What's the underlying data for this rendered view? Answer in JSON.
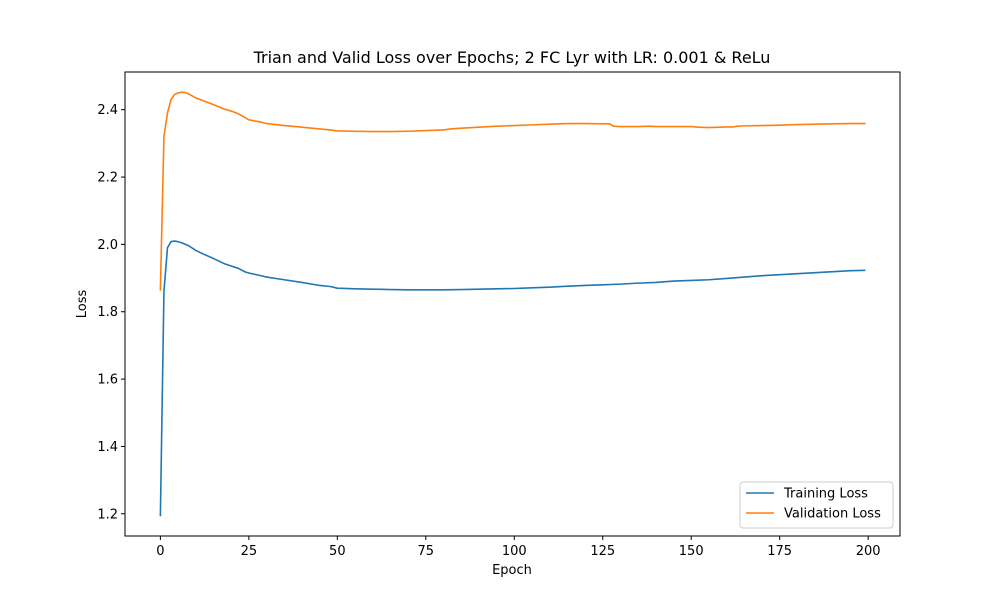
{
  "chart_data": {
    "type": "line",
    "title": "Trian and Valid Loss over Epochs; 2 FC Lyr with LR: 0.001 & ReLu",
    "xlabel": "Epoch",
    "ylabel": "Loss",
    "xlim": [
      -10,
      209
    ],
    "ylim": [
      1.134,
      2.512
    ],
    "xticks": [
      0,
      25,
      50,
      75,
      100,
      125,
      150,
      175,
      200
    ],
    "yticks": [
      1.2,
      1.4,
      1.6,
      1.8,
      2.0,
      2.2,
      2.4
    ],
    "grid": false,
    "legend_position": "lower-right",
    "series": [
      {
        "name": "Training Loss",
        "color": "#1f77b4",
        "points": [
          [
            0,
            1.195
          ],
          [
            1,
            1.86
          ],
          [
            2,
            1.99
          ],
          [
            3,
            2.008
          ],
          [
            4,
            2.01
          ],
          [
            5,
            2.008
          ],
          [
            6,
            2.005
          ],
          [
            8,
            1.996
          ],
          [
            10,
            1.982
          ],
          [
            12,
            1.972
          ],
          [
            15,
            1.958
          ],
          [
            18,
            1.943
          ],
          [
            20,
            1.936
          ],
          [
            22,
            1.929
          ],
          [
            24,
            1.918
          ],
          [
            25,
            1.915
          ],
          [
            28,
            1.908
          ],
          [
            30,
            1.903
          ],
          [
            35,
            1.895
          ],
          [
            40,
            1.887
          ],
          [
            45,
            1.878
          ],
          [
            48,
            1.875
          ],
          [
            50,
            1.87
          ],
          [
            55,
            1.868
          ],
          [
            60,
            1.867
          ],
          [
            65,
            1.866
          ],
          [
            70,
            1.865
          ],
          [
            75,
            1.865
          ],
          [
            80,
            1.865
          ],
          [
            85,
            1.866
          ],
          [
            90,
            1.867
          ],
          [
            95,
            1.868
          ],
          [
            100,
            1.869
          ],
          [
            105,
            1.871
          ],
          [
            110,
            1.873
          ],
          [
            115,
            1.876
          ],
          [
            120,
            1.878
          ],
          [
            125,
            1.88
          ],
          [
            130,
            1.882
          ],
          [
            135,
            1.885
          ],
          [
            140,
            1.887
          ],
          [
            145,
            1.891
          ],
          [
            150,
            1.893
          ],
          [
            155,
            1.895
          ],
          [
            160,
            1.899
          ],
          [
            165,
            1.903
          ],
          [
            170,
            1.907
          ],
          [
            175,
            1.91
          ],
          [
            180,
            1.913
          ],
          [
            185,
            1.916
          ],
          [
            190,
            1.919
          ],
          [
            195,
            1.922
          ],
          [
            199,
            1.923
          ]
        ]
      },
      {
        "name": "Validation Loss",
        "color": "#ff7f0e",
        "points": [
          [
            0,
            1.865
          ],
          [
            1,
            2.32
          ],
          [
            2,
            2.39
          ],
          [
            3,
            2.43
          ],
          [
            4,
            2.445
          ],
          [
            5,
            2.45
          ],
          [
            6,
            2.452
          ],
          [
            7,
            2.451
          ],
          [
            8,
            2.447
          ],
          [
            10,
            2.435
          ],
          [
            12,
            2.427
          ],
          [
            15,
            2.415
          ],
          [
            18,
            2.402
          ],
          [
            20,
            2.396
          ],
          [
            22,
            2.388
          ],
          [
            24,
            2.376
          ],
          [
            25,
            2.37
          ],
          [
            28,
            2.364
          ],
          [
            30,
            2.359
          ],
          [
            35,
            2.353
          ],
          [
            40,
            2.348
          ],
          [
            45,
            2.343
          ],
          [
            48,
            2.34
          ],
          [
            50,
            2.337
          ],
          [
            55,
            2.336
          ],
          [
            60,
            2.335
          ],
          [
            65,
            2.335
          ],
          [
            70,
            2.336
          ],
          [
            75,
            2.338
          ],
          [
            80,
            2.34
          ],
          [
            82,
            2.343
          ],
          [
            85,
            2.345
          ],
          [
            90,
            2.348
          ],
          [
            95,
            2.351
          ],
          [
            100,
            2.353
          ],
          [
            105,
            2.355
          ],
          [
            110,
            2.357
          ],
          [
            115,
            2.359
          ],
          [
            120,
            2.359
          ],
          [
            125,
            2.358
          ],
          [
            127,
            2.358
          ],
          [
            128,
            2.351
          ],
          [
            130,
            2.35
          ],
          [
            135,
            2.35
          ],
          [
            138,
            2.351
          ],
          [
            140,
            2.35
          ],
          [
            145,
            2.35
          ],
          [
            150,
            2.35
          ],
          [
            152,
            2.348
          ],
          [
            155,
            2.347
          ],
          [
            160,
            2.349
          ],
          [
            162,
            2.349
          ],
          [
            163,
            2.351
          ],
          [
            165,
            2.352
          ],
          [
            170,
            2.353
          ],
          [
            175,
            2.354
          ],
          [
            180,
            2.356
          ],
          [
            185,
            2.357
          ],
          [
            190,
            2.358
          ],
          [
            195,
            2.359
          ],
          [
            199,
            2.359
          ]
        ]
      }
    ]
  }
}
